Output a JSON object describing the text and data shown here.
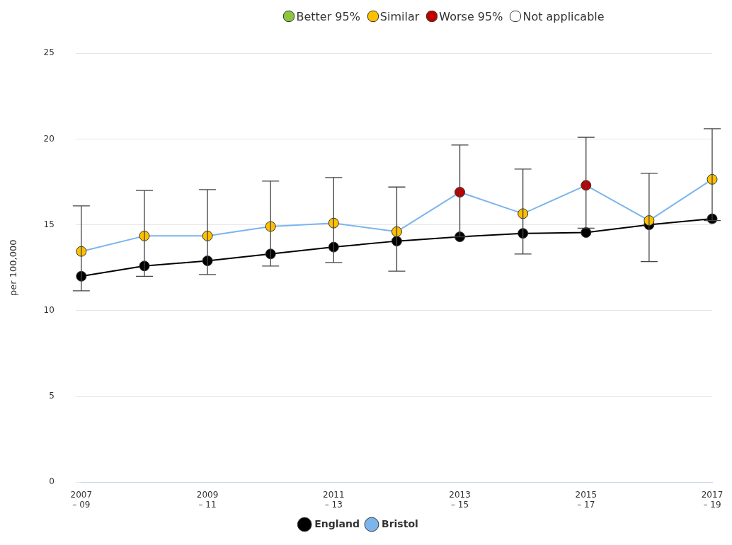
{
  "chart_data": {
    "type": "line",
    "ylabel": "per 100,000",
    "categories": [
      "2007\n– 09",
      null,
      "2009\n– 11",
      null,
      "2011\n– 13",
      null,
      "2013\n– 15",
      null,
      "2015\n– 17",
      null,
      "2017\n– 19"
    ],
    "series": [
      {
        "name": "England",
        "color": "#000000",
        "values": [
          12.0,
          12.6,
          12.9,
          13.3,
          13.7,
          14.05,
          14.3,
          14.5,
          14.55,
          15.0,
          15.35
        ]
      },
      {
        "name": "Bristol",
        "color": "#7cb5ec",
        "colors": [
          "#ffc000",
          "#ffc000",
          "#ffc000",
          "#ffc000",
          "#ffc000",
          "#ffc000",
          "#c00000",
          "#ffc000",
          "#c00000",
          "#ffc000",
          "#ffc000"
        ],
        "values": [
          13.45,
          14.35,
          14.35,
          14.9,
          15.1,
          14.6,
          16.9,
          15.65,
          17.3,
          15.25,
          17.65
        ],
        "errors": [
          [
            11.15,
            16.1
          ],
          [
            12.0,
            17.0
          ],
          [
            12.1,
            17.05
          ],
          [
            12.6,
            17.55
          ],
          [
            12.8,
            17.75
          ],
          [
            12.3,
            17.2
          ],
          [
            14.3,
            19.65
          ],
          [
            13.3,
            18.25
          ],
          [
            14.8,
            20.1
          ],
          [
            12.85,
            18.0
          ],
          [
            15.25,
            20.6
          ]
        ]
      }
    ],
    "annotations": [
      "Better 95%",
      "Similar",
      "Worse 95%",
      "Not applicable"
    ],
    "ylim": [
      0,
      25
    ],
    "yticks": [
      0,
      5,
      10,
      15,
      20,
      25
    ],
    "grid": "y",
    "legend": "bottom",
    "marker": "circle",
    "line_style": "solid"
  }
}
